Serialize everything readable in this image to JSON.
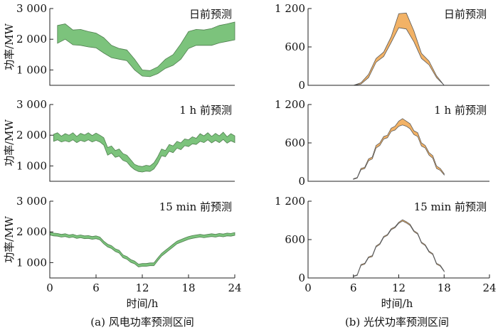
{
  "figure": {
    "xlabel": "时间/h",
    "ylabel": "功率/MW",
    "captions": [
      "(a)  风电功率预测区间",
      "(b)  光伏功率预测区间"
    ]
  },
  "chart_data": [
    {
      "type": "area",
      "panel": "a-dayahead",
      "title": "日前预测",
      "xlim": [
        0,
        24
      ],
      "ylim": [
        500,
        3000
      ],
      "yticks": [
        1000,
        2000,
        3000
      ],
      "ytick_labels": [
        "1 000",
        "2 000",
        "3 000"
      ],
      "xticks": [],
      "color": "#7cc37c",
      "x": [
        1,
        2,
        3,
        4,
        5,
        6,
        7,
        8,
        9,
        10,
        11,
        12,
        13,
        14,
        15,
        16,
        17,
        18,
        19,
        20,
        21,
        22,
        23,
        24
      ],
      "upper": [
        2450,
        2500,
        2300,
        2320,
        2250,
        2200,
        2050,
        1800,
        1700,
        1650,
        1350,
        1000,
        980,
        1100,
        1350,
        1500,
        1850,
        2250,
        2320,
        2300,
        2350,
        2450,
        2500,
        2560
      ],
      "lower": [
        1870,
        2000,
        1820,
        1800,
        1750,
        1720,
        1550,
        1400,
        1350,
        1300,
        1000,
        800,
        780,
        880,
        1050,
        1150,
        1350,
        1700,
        1800,
        1800,
        1800,
        1880,
        1930,
        1980
      ]
    },
    {
      "type": "area",
      "panel": "a-1h",
      "title": "1 h 前预测",
      "xlim": [
        0,
        24
      ],
      "ylim": [
        500,
        3000
      ],
      "yticks": [
        1000,
        2000,
        3000
      ],
      "ytick_labels": [
        "1 000",
        "2 000",
        "3 000"
      ],
      "xticks": [],
      "color": "#7cc37c",
      "x": [
        0.5,
        1,
        1.5,
        2,
        2.5,
        3,
        3.5,
        4,
        4.5,
        5,
        5.5,
        6,
        6.5,
        7,
        7.5,
        8,
        8.5,
        9,
        9.5,
        10,
        10.5,
        11,
        11.5,
        12,
        12.5,
        13,
        13.5,
        14,
        14.5,
        15,
        15.5,
        16,
        16.5,
        17,
        17.5,
        18,
        18.5,
        19,
        19.5,
        20,
        20.5,
        21,
        21.5,
        22,
        22.5,
        23,
        23.5,
        24
      ],
      "upper": [
        2030,
        2080,
        1970,
        2050,
        2000,
        2080,
        1960,
        2060,
        2010,
        2080,
        1990,
        2070,
        2000,
        1920,
        1600,
        1650,
        1500,
        1550,
        1400,
        1350,
        1200,
        1050,
        1000,
        980,
        1020,
        1000,
        1100,
        1300,
        1550,
        1500,
        1700,
        1650,
        1800,
        1750,
        1880,
        1850,
        1950,
        1900,
        2050,
        1980,
        2080,
        1960,
        2060,
        1980,
        2100,
        1950,
        2050,
        1980
      ],
      "lower": [
        1800,
        1850,
        1780,
        1820,
        1780,
        1850,
        1760,
        1830,
        1790,
        1850,
        1780,
        1830,
        1780,
        1680,
        1350,
        1420,
        1280,
        1320,
        1180,
        1130,
        980,
        880,
        820,
        800,
        830,
        820,
        900,
        1080,
        1330,
        1300,
        1480,
        1430,
        1580,
        1530,
        1660,
        1630,
        1720,
        1700,
        1800,
        1760,
        1850,
        1750,
        1830,
        1760,
        1860,
        1740,
        1820,
        1760
      ]
    },
    {
      "type": "area",
      "panel": "a-15min",
      "title": "15 min 前预测",
      "xlim": [
        0,
        24
      ],
      "ylim": [
        500,
        3000
      ],
      "yticks": [
        1000,
        2000,
        3000
      ],
      "ytick_labels": [
        "1 000",
        "2 000",
        "3 000"
      ],
      "xticks": [
        0,
        6,
        12,
        18,
        24
      ],
      "color": "#7cc37c",
      "x": [
        0,
        0.5,
        1,
        1.5,
        2,
        2.5,
        3,
        3.5,
        4,
        4.5,
        5,
        5.5,
        6,
        6.5,
        7,
        7.5,
        8,
        8.5,
        9,
        9.5,
        10,
        10.5,
        11,
        11.5,
        12,
        12.5,
        13,
        13.5,
        14,
        14.5,
        15,
        15.5,
        16,
        16.5,
        17,
        17.5,
        18,
        18.5,
        19,
        19.5,
        20,
        20.5,
        21,
        21.5,
        22,
        22.5,
        23,
        23.5,
        24
      ],
      "upper": [
        1990,
        1960,
        1950,
        1920,
        1940,
        1900,
        1920,
        1880,
        1900,
        1870,
        1880,
        1850,
        1870,
        1830,
        1700,
        1600,
        1550,
        1450,
        1400,
        1250,
        1200,
        1100,
        1050,
        950,
        970,
        970,
        990,
        990,
        1150,
        1300,
        1400,
        1500,
        1600,
        1700,
        1750,
        1800,
        1850,
        1880,
        1900,
        1920,
        1900,
        1920,
        1940,
        1920,
        1950,
        1930,
        1960,
        1950,
        1980
      ],
      "lower": [
        1900,
        1870,
        1860,
        1830,
        1850,
        1810,
        1830,
        1790,
        1810,
        1780,
        1790,
        1760,
        1780,
        1740,
        1610,
        1510,
        1460,
        1360,
        1310,
        1160,
        1110,
        1010,
        960,
        860,
        880,
        880,
        900,
        900,
        1060,
        1210,
        1310,
        1410,
        1510,
        1610,
        1660,
        1710,
        1760,
        1790,
        1810,
        1830,
        1810,
        1830,
        1850,
        1830,
        1860,
        1840,
        1870,
        1860,
        1890
      ]
    },
    {
      "type": "area",
      "panel": "b-dayahead",
      "title": "日前预测",
      "xlim": [
        0,
        24
      ],
      "ylim": [
        0,
        1200
      ],
      "yticks": [
        0,
        600,
        1200
      ],
      "ytick_labels": [
        "0",
        "600",
        "1 200"
      ],
      "xticks": [],
      "color": "#f2b266",
      "x": [
        6,
        7,
        8,
        9,
        10,
        11,
        12,
        13,
        14,
        15,
        16,
        17,
        18
      ],
      "upper": [
        0,
        40,
        170,
        420,
        520,
        760,
        1120,
        1130,
        850,
        500,
        380,
        150,
        0
      ],
      "lower": [
        0,
        20,
        120,
        360,
        450,
        670,
        900,
        880,
        680,
        420,
        320,
        120,
        0
      ]
    },
    {
      "type": "area",
      "panel": "b-1h",
      "title": "1 h 前预测",
      "xlim": [
        0,
        24
      ],
      "ylim": [
        0,
        1200
      ],
      "yticks": [
        0,
        600,
        1200
      ],
      "ytick_labels": [
        "0",
        "600",
        "1 200"
      ],
      "xticks": [],
      "color": "#f2b266",
      "x": [
        6,
        6.5,
        7,
        7.5,
        8,
        8.5,
        9,
        9.5,
        10,
        10.5,
        11,
        11.5,
        12,
        12.5,
        13,
        13.5,
        14,
        14.5,
        15,
        15.5,
        16,
        16.5,
        17,
        17.5,
        18
      ],
      "upper": [
        40,
        60,
        200,
        220,
        350,
        380,
        560,
        600,
        700,
        720,
        830,
        860,
        940,
        980,
        940,
        900,
        790,
        760,
        600,
        560,
        450,
        400,
        240,
        200,
        120
      ],
      "lower": [
        30,
        50,
        180,
        200,
        320,
        350,
        520,
        560,
        660,
        680,
        780,
        800,
        860,
        880,
        860,
        820,
        730,
        700,
        550,
        520,
        410,
        360,
        200,
        170,
        100
      ]
    },
    {
      "type": "area",
      "panel": "b-15min",
      "title": "15 min 前预测",
      "xlim": [
        0,
        24
      ],
      "ylim": [
        0,
        1200
      ],
      "yticks": [
        0,
        600,
        1200
      ],
      "ytick_labels": [
        "0",
        "600",
        "1 200"
      ],
      "xticks": [
        0,
        6,
        12,
        18,
        24
      ],
      "color": "#f2b266",
      "x": [
        6,
        6.5,
        7,
        7.5,
        8,
        8.5,
        9,
        9.5,
        10,
        10.5,
        11,
        11.5,
        12,
        12.5,
        13,
        13.5,
        14,
        14.5,
        15,
        15.5,
        16,
        16.5,
        17,
        17.5,
        18
      ],
      "upper": [
        30,
        50,
        210,
        230,
        330,
        350,
        500,
        540,
        650,
        680,
        770,
        800,
        870,
        910,
        880,
        840,
        740,
        700,
        560,
        520,
        420,
        380,
        230,
        200,
        110
      ],
      "lower": [
        25,
        40,
        195,
        215,
        315,
        335,
        485,
        525,
        635,
        665,
        755,
        785,
        855,
        890,
        860,
        820,
        725,
        685,
        545,
        505,
        405,
        365,
        215,
        185,
        100
      ]
    }
  ]
}
